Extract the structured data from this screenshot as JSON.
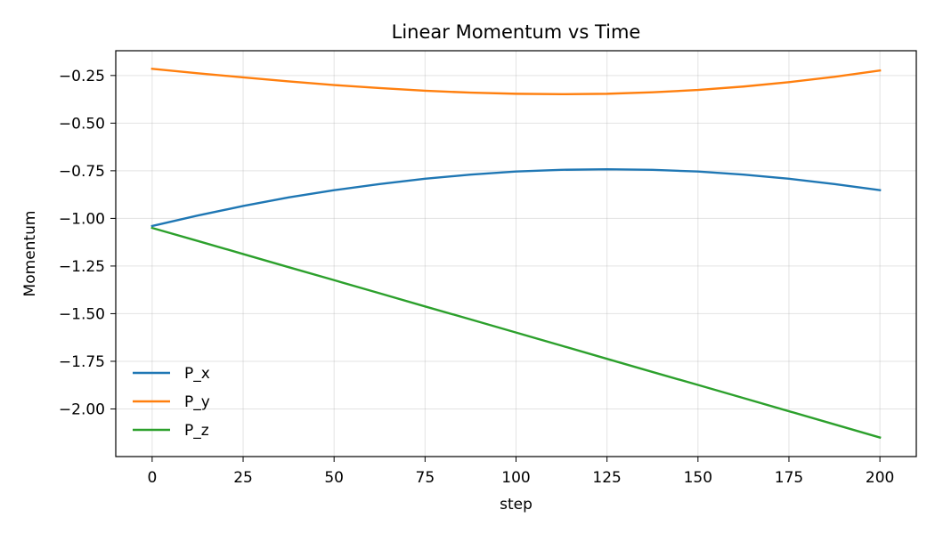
{
  "chart_data": {
    "type": "line",
    "title": "Linear Momentum vs Time",
    "xlabel": "step",
    "ylabel": "Momentum",
    "xlim": [
      -10,
      210
    ],
    "ylim": [
      -2.25,
      -0.12
    ],
    "xticks": [
      0,
      25,
      50,
      75,
      100,
      125,
      150,
      175,
      200
    ],
    "xtick_labels": [
      "0",
      "25",
      "50",
      "75",
      "100",
      "125",
      "150",
      "175",
      "200"
    ],
    "yticks": [
      -0.25,
      -0.5,
      -0.75,
      -1.0,
      -1.25,
      -1.5,
      -1.75,
      -2.0
    ],
    "ytick_labels": [
      "−0.25",
      "−0.50",
      "−0.75",
      "−1.00",
      "−1.25",
      "−1.50",
      "−1.75",
      "−2.00"
    ],
    "grid": true,
    "legend_position": "lower-left",
    "x": [
      0,
      12.5,
      25,
      37.5,
      50,
      62.5,
      75,
      87.5,
      100,
      112.5,
      125,
      137.5,
      150,
      162.5,
      175,
      187.5,
      200
    ],
    "series": [
      {
        "name": "P_x",
        "color": "#1f77b4",
        "values": [
          -1.04,
          -0.985,
          -0.935,
          -0.89,
          -0.852,
          -0.82,
          -0.792,
          -0.77,
          -0.754,
          -0.745,
          -0.742,
          -0.745,
          -0.754,
          -0.77,
          -0.792,
          -0.82,
          -0.852
        ]
      },
      {
        "name": "P_y",
        "color": "#ff7f0e",
        "values": [
          -0.215,
          -0.238,
          -0.26,
          -0.281,
          -0.3,
          -0.316,
          -0.33,
          -0.34,
          -0.346,
          -0.348,
          -0.346,
          -0.338,
          -0.326,
          -0.308,
          -0.285,
          -0.257,
          -0.224
        ]
      },
      {
        "name": "P_z",
        "color": "#2ca02c",
        "values": [
          -1.05,
          -1.118,
          -1.187,
          -1.256,
          -1.324,
          -1.393,
          -1.462,
          -1.53,
          -1.599,
          -1.668,
          -1.737,
          -1.806,
          -1.874,
          -1.943,
          -2.012,
          -2.081,
          -2.15
        ]
      }
    ]
  }
}
